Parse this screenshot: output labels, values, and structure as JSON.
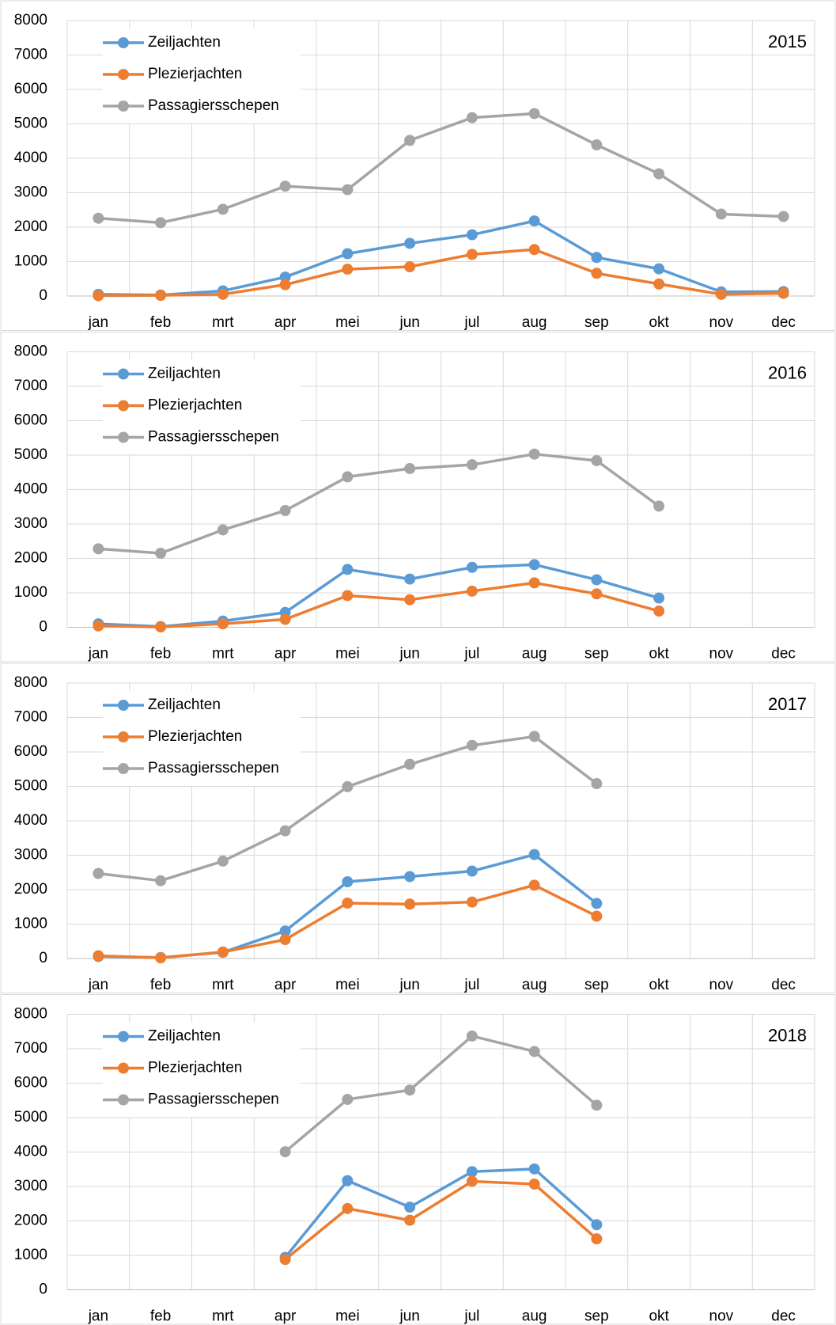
{
  "chart_data": [
    {
      "type": "line",
      "title": "2015",
      "categories": [
        "jan",
        "feb",
        "mrt",
        "apr",
        "mei",
        "jun",
        "jul",
        "aug",
        "sep",
        "okt",
        "nov",
        "dec"
      ],
      "series": [
        {
          "name": "Zeiljachten",
          "color": "#5b9bd5",
          "values": [
            50,
            30,
            150,
            550,
            1230,
            1530,
            1780,
            2180,
            1120,
            790,
            120,
            130
          ]
        },
        {
          "name": "Plezierjachten",
          "color": "#ed7d31",
          "values": [
            10,
            20,
            50,
            330,
            780,
            850,
            1210,
            1350,
            660,
            350,
            50,
            80
          ]
        },
        {
          "name": "Passagiersschepen",
          "color": "#a5a5a5",
          "values": [
            2260,
            2130,
            2520,
            3190,
            3090,
            4520,
            5180,
            5300,
            4390,
            3550,
            2380,
            2310
          ]
        }
      ],
      "ylim": [
        0,
        8000
      ],
      "yticks": [
        0,
        1000,
        2000,
        3000,
        4000,
        5000,
        6000,
        7000,
        8000
      ],
      "grid": true,
      "legend": "upper left"
    },
    {
      "type": "line",
      "title": "2016",
      "categories": [
        "jan",
        "feb",
        "mrt",
        "apr",
        "mei",
        "jun",
        "jul",
        "aug",
        "sep",
        "okt",
        "nov",
        "dec"
      ],
      "series": [
        {
          "name": "Zeiljachten",
          "color": "#5b9bd5",
          "values": [
            100,
            20,
            180,
            430,
            1680,
            1400,
            1740,
            1820,
            1380,
            850,
            null,
            null
          ]
        },
        {
          "name": "Plezierjachten",
          "color": "#ed7d31",
          "values": [
            40,
            10,
            100,
            230,
            920,
            800,
            1050,
            1290,
            970,
            470,
            null,
            null
          ]
        },
        {
          "name": "Passagiersschepen",
          "color": "#a5a5a5",
          "values": [
            2280,
            2150,
            2830,
            3390,
            4370,
            4610,
            4720,
            5030,
            4840,
            3520,
            null,
            null
          ]
        }
      ],
      "ylim": [
        0,
        8000
      ],
      "yticks": [
        0,
        1000,
        2000,
        3000,
        4000,
        5000,
        6000,
        7000,
        8000
      ],
      "grid": true,
      "legend": "upper left"
    },
    {
      "type": "line",
      "title": "2017",
      "categories": [
        "jan",
        "feb",
        "mrt",
        "apr",
        "mei",
        "jun",
        "jul",
        "aug",
        "sep",
        "okt",
        "nov",
        "dec"
      ],
      "series": [
        {
          "name": "Zeiljachten",
          "color": "#5b9bd5",
          "values": [
            60,
            30,
            180,
            800,
            2230,
            2380,
            2540,
            3020,
            1600,
            null,
            null,
            null
          ]
        },
        {
          "name": "Plezierjachten",
          "color": "#ed7d31",
          "values": [
            80,
            20,
            190,
            550,
            1610,
            1580,
            1640,
            2130,
            1230,
            null,
            null,
            null
          ]
        },
        {
          "name": "Passagiersschepen",
          "color": "#a5a5a5",
          "values": [
            2470,
            2260,
            2830,
            3710,
            4990,
            5640,
            6190,
            6450,
            5080,
            null,
            null,
            null
          ]
        }
      ],
      "ylim": [
        0,
        8000
      ],
      "yticks": [
        0,
        1000,
        2000,
        3000,
        4000,
        5000,
        6000,
        7000,
        8000
      ],
      "grid": true,
      "legend": "upper left"
    },
    {
      "type": "line",
      "title": "2018",
      "categories": [
        "jan",
        "feb",
        "mrt",
        "apr",
        "mei",
        "jun",
        "jul",
        "aug",
        "sep",
        "okt",
        "nov",
        "dec"
      ],
      "series": [
        {
          "name": "Zeiljachten",
          "color": "#5b9bd5",
          "values": [
            null,
            null,
            null,
            940,
            3170,
            2400,
            3430,
            3510,
            1890,
            null,
            null,
            null
          ]
        },
        {
          "name": "Plezierjachten",
          "color": "#ed7d31",
          "values": [
            null,
            null,
            null,
            880,
            2360,
            2020,
            3150,
            3070,
            1480,
            null,
            null,
            null
          ]
        },
        {
          "name": "Passagiersschepen",
          "color": "#a5a5a5",
          "values": [
            null,
            null,
            null,
            4010,
            5530,
            5800,
            7370,
            6920,
            5360,
            null,
            null,
            null
          ]
        }
      ],
      "ylim": [
        0,
        8000
      ],
      "yticks": [
        0,
        1000,
        2000,
        3000,
        4000,
        5000,
        6000,
        7000,
        8000
      ],
      "grid": true,
      "legend": "upper left"
    }
  ]
}
